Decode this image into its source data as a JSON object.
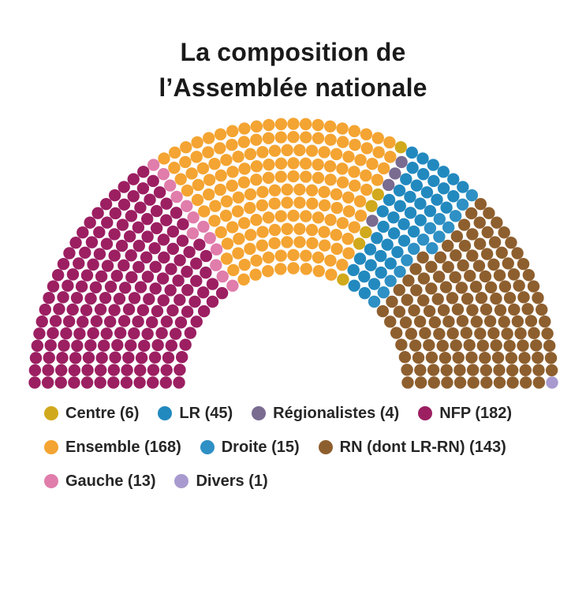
{
  "title": {
    "line1": "La composition de",
    "line2": "l’Assemblée nationale"
  },
  "chart_data": {
    "type": "parliament",
    "title": "La composition de l’Assemblée nationale",
    "total_seats": 577,
    "rows": 12,
    "seating_order": [
      "NFP",
      "Gauche",
      "Ensemble",
      "Centre",
      "Régionalistes",
      "LR",
      "Droite",
      "RN",
      "Divers"
    ],
    "parties": [
      {
        "name": "Centre",
        "seats": 6,
        "color": "#d1a91c",
        "label": "Centre (6)"
      },
      {
        "name": "LR",
        "seats": 45,
        "color": "#2289bf",
        "label": "LR (45)"
      },
      {
        "name": "Régionalistes",
        "seats": 4,
        "color": "#7a6b91",
        "label": "Régionalistes (4)"
      },
      {
        "name": "NFP",
        "seats": 182,
        "color": "#9c1f62",
        "label": "NFP (182)"
      },
      {
        "name": "Ensemble",
        "seats": 168,
        "color": "#f4a432",
        "label": "Ensemble (168)"
      },
      {
        "name": "Droite",
        "seats": 15,
        "color": "#2e90c4",
        "label": "Droite (15)"
      },
      {
        "name": "RN",
        "seats": 143,
        "color": "#8e5f2e",
        "label": "RN (dont LR-RN) (143)"
      },
      {
        "name": "Gauche",
        "seats": 13,
        "color": "#e07dab",
        "label": "Gauche (13)"
      },
      {
        "name": "Divers",
        "seats": 1,
        "color": "#a89ace",
        "label": "Divers (1)"
      }
    ],
    "legend_rows": [
      [
        "Centre",
        "LR",
        "Régionalistes",
        "NFP"
      ],
      [
        "Ensemble",
        "Droite",
        "RN"
      ],
      [
        "Gauche",
        "Divers"
      ]
    ]
  }
}
